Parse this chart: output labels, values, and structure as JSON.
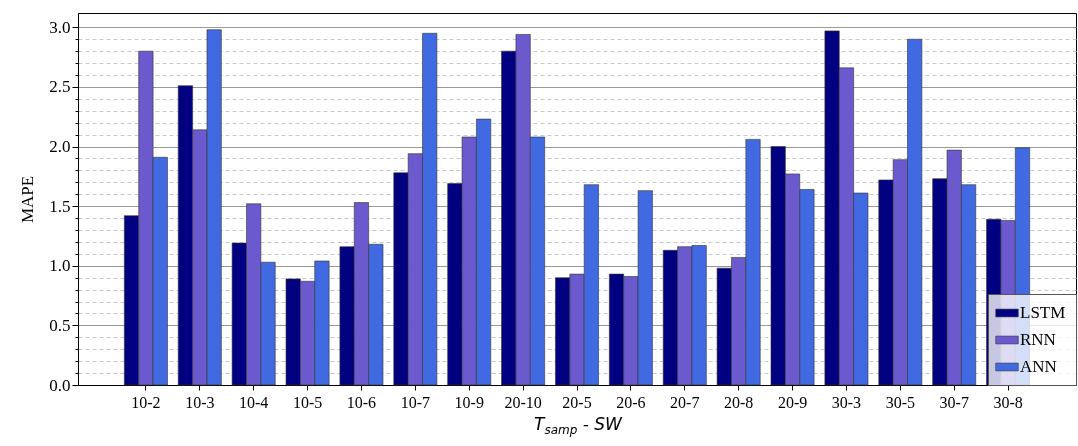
{
  "chart_data": {
    "type": "bar",
    "xlabel": "T$_{samp}$ - SW",
    "ylabel": "MAPE",
    "categories": [
      "10-2",
      "10-3",
      "10-4",
      "10-5",
      "10-6",
      "10-7",
      "10-9",
      "20-10",
      "20-5",
      "20-6",
      "20-7",
      "20-8",
      "20-9",
      "30-3",
      "30-5",
      "30-7",
      "30-8"
    ],
    "series": [
      {
        "name": "LSTM",
        "color": "#000080",
        "values": [
          1.42,
          2.51,
          1.19,
          0.89,
          1.16,
          1.78,
          1.69,
          2.8,
          0.9,
          0.93,
          1.13,
          0.98,
          2.0,
          2.97,
          1.72,
          1.73,
          1.39
        ]
      },
      {
        "name": "RNN",
        "color": "#6a5acd",
        "values": [
          2.8,
          2.14,
          1.52,
          0.87,
          1.53,
          1.94,
          2.08,
          2.94,
          0.93,
          0.91,
          1.16,
          1.07,
          1.77,
          2.66,
          1.89,
          1.97,
          1.38
        ]
      },
      {
        "name": "ANN",
        "color": "#4169e1",
        "values": [
          1.91,
          2.98,
          1.03,
          1.04,
          1.18,
          2.95,
          2.23,
          2.08,
          1.68,
          1.63,
          1.17,
          2.06,
          1.64,
          1.61,
          2.9,
          1.68,
          1.99
        ]
      }
    ],
    "ylim": [
      0,
      3.12
    ],
    "yticks": [
      {
        "value": 0,
        "label": "0.0"
      },
      {
        "value": 0.1,
        "label": null
      },
      {
        "value": 0.2,
        "label": null
      },
      {
        "value": 0.3,
        "label": null
      },
      {
        "value": 0.4,
        "label": null
      },
      0.5,
      {
        "value": 0.6,
        "label": null
      },
      {
        "value": 0.7,
        "label": null
      },
      {
        "value": 0.8,
        "label": null
      },
      {
        "value": 0.9,
        "label": null
      },
      {
        "value": 1,
        "label": "1.0"
      },
      {
        "value": 1.1,
        "label": null
      },
      {
        "value": 1.2,
        "label": null
      },
      {
        "value": 1.3,
        "label": null
      },
      {
        "value": 1.4,
        "label": null
      },
      1.5,
      {
        "value": 1.6,
        "label": null
      },
      {
        "value": 1.7,
        "label": null
      },
      {
        "value": 1.8,
        "label": null
      },
      {
        "value": 1.9,
        "label": null
      },
      {
        "value": 2,
        "label": "2.0"
      },
      {
        "value": 2.1,
        "label": null
      },
      {
        "value": 2.2,
        "label": null
      },
      {
        "value": 2.3,
        "label": null
      },
      {
        "value": 2.4,
        "label": null
      },
      2.5,
      {
        "value": 2.6,
        "label": null
      },
      {
        "value": 2.7,
        "label": null
      },
      {
        "value": 2.8,
        "label": null
      },
      {
        "value": 2.9,
        "label": null
      },
      {
        "value": 3,
        "label": "3.0"
      }
    ],
    "grid": true,
    "legend": "bottom right"
  }
}
